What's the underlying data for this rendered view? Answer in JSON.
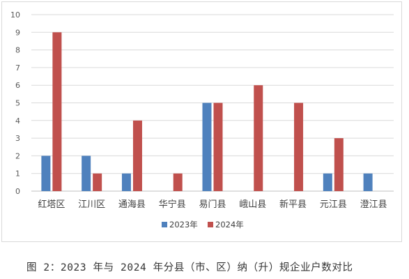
{
  "chart_data": {
    "type": "bar",
    "categories": [
      "红塔区",
      "江川区",
      "通海县",
      "华宁县",
      "易门县",
      "峨山县",
      "新平县",
      "元江县",
      "澄江县"
    ],
    "series": [
      {
        "name": "2023年",
        "values": [
          2,
          2,
          1,
          0,
          5,
          0,
          0,
          1,
          1
        ],
        "color": "#4f81bd"
      },
      {
        "name": "2024年",
        "values": [
          9,
          1,
          4,
          1,
          5,
          6,
          5,
          3,
          0
        ],
        "color": "#c0504d"
      }
    ],
    "yticks": [
      "0",
      "1",
      "2",
      "3",
      "4",
      "5",
      "6",
      "7",
      "8",
      "9",
      "10"
    ],
    "ylim": [
      0,
      10
    ],
    "grid": true,
    "legend_position": "bottom"
  },
  "caption": "图 2：2023 年与 2024 年分县（市、区）纳（升）规企业户数对比"
}
